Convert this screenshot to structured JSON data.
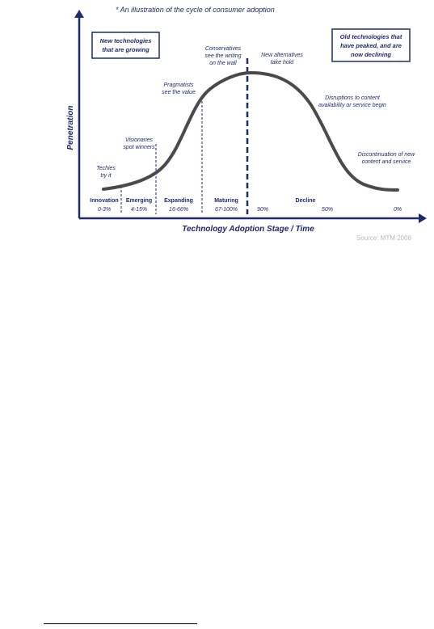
{
  "caption": "* An illustration of the cycle of consumer adoption",
  "left_box": [
    "New technologies",
    "that are growing"
  ],
  "right_box": [
    "Old technologies that",
    "have peaked, and are",
    "now declining"
  ],
  "y_axis_label": "Penetration",
  "x_axis_label": "Technology Adoption Stage /  Time",
  "source": "Source: MTM 2008",
  "annotations": {
    "techies": [
      "Techies",
      "try it"
    ],
    "visionaries": [
      "Visionaries",
      "spot winners"
    ],
    "pragmatists": [
      "Pragmatists",
      "see the value"
    ],
    "conservatives": [
      "Conservatives",
      "see the writing",
      "on the wall"
    ],
    "alternatives": [
      "New alternatives",
      "take hold"
    ],
    "disruptions": [
      "Disruptions to content",
      "availability or service begin"
    ],
    "discontinuation": [
      "Discontinuation of new",
      "content and service"
    ]
  },
  "stages": [
    {
      "name": "Innovation",
      "range": "0-3%"
    },
    {
      "name": "Emerging",
      "range": "4-15%"
    },
    {
      "name": "Expanding",
      "range": "16-66%"
    },
    {
      "name": "Maturing",
      "range": "67-100%"
    },
    {
      "name": "Decline",
      "range": ""
    }
  ],
  "decline_values": [
    "90%",
    "50%",
    "0%"
  ],
  "colors": {
    "axis": "#1f2a6b",
    "text": "#1f2a6b",
    "curve": "#4a4a4a",
    "dashed_line": "#1f2a6b",
    "source": "#b8b8b8"
  }
}
